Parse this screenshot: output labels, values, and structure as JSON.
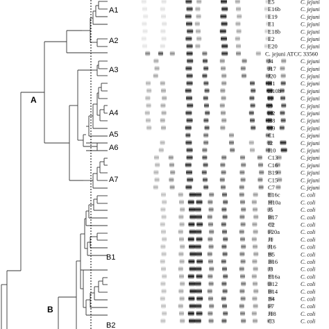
{
  "major_clusters": [
    "A",
    "B"
  ],
  "subclusters": [
    "A1",
    "A2",
    "A3",
    "A4",
    "A5",
    "A6",
    "A7",
    "B1",
    "B2"
  ],
  "lanes": [
    {
      "strain": "E5",
      "species": "C. jejuni"
    },
    {
      "strain": "E16b",
      "species": "C. jejuni"
    },
    {
      "strain": "E19",
      "species": "C. jejuni"
    },
    {
      "strain": "E1",
      "species": "C. jejuni"
    },
    {
      "strain": "E18b",
      "species": "C. jejuni"
    },
    {
      "strain": "E2",
      "species": "C. jejuni"
    },
    {
      "strain": "E20",
      "species": "C. jejuni"
    },
    {
      "strain": "C. jejuni ATCC 33560",
      "species": ""
    },
    {
      "strain": "J4",
      "species": "C. jejuni"
    },
    {
      "strain": "J17",
      "species": "C. jejuni"
    },
    {
      "strain": "J20",
      "species": "C. jejuni"
    },
    {
      "strain": "H1",
      "species": "C. jejuni"
    },
    {
      "strain": "H10b",
      "species": "C. jejuni"
    },
    {
      "strain": "I1",
      "species": "C. jejuni"
    },
    {
      "strain": "I9",
      "species": "C. jejuni"
    },
    {
      "strain": "H2",
      "species": "C. jejuni"
    },
    {
      "strain": "H8",
      "species": "C. jejuni"
    },
    {
      "strain": "H9",
      "species": "C. jejuni"
    },
    {
      "strain": "C1",
      "species": "C. jejuni"
    },
    {
      "strain": "I2",
      "species": "C. jejuni"
    },
    {
      "strain": "I10",
      "species": "C. jejuni"
    },
    {
      "strain": "C13",
      "species": "C. jejuni"
    },
    {
      "strain": "C16",
      "species": "C. jejuni"
    },
    {
      "strain": "B19",
      "species": "C. jejuni"
    },
    {
      "strain": "C15",
      "species": "C. jejuni"
    },
    {
      "strain": "C7",
      "species": "C. jejuni"
    },
    {
      "strain": "E16c",
      "species": "C. coli"
    },
    {
      "strain": "H10a",
      "species": "C. coli"
    },
    {
      "strain": "J5",
      "species": "C. coli"
    },
    {
      "strain": "B17",
      "species": "C. coli"
    },
    {
      "strain": "C2",
      "species": "C. coli"
    },
    {
      "strain": "F20a",
      "species": "C. coli"
    },
    {
      "strain": "J1",
      "species": "C. coli"
    },
    {
      "strain": "J16",
      "species": "C. coli"
    },
    {
      "strain": "B5",
      "species": "C. coli"
    },
    {
      "strain": "B16",
      "species": "C. coli"
    },
    {
      "strain": "J3",
      "species": "C. coli"
    },
    {
      "strain": "E16a",
      "species": "C. coli"
    },
    {
      "strain": "B12",
      "species": "C. coli"
    },
    {
      "strain": "B14",
      "species": "C. coli"
    },
    {
      "strain": "B4",
      "species": "C. coli"
    },
    {
      "strain": "F7",
      "species": "C. coli"
    },
    {
      "strain": "J18",
      "species": "C. coli"
    },
    {
      "strain": "C3",
      "species": "C. coli"
    }
  ]
}
